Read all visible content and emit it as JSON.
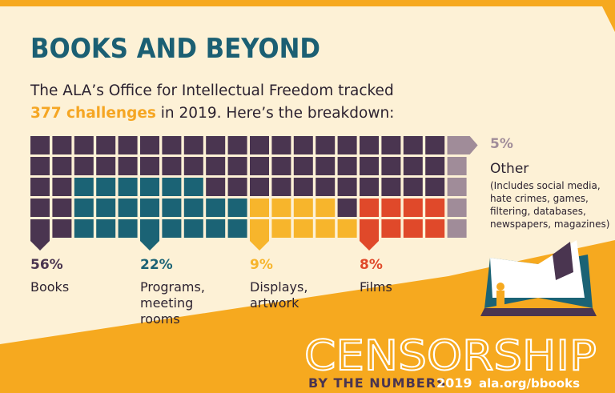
{
  "header": {
    "title": "BOOKS AND BEYOND",
    "intro_line1": "The ALA’s Office for Intellectual Freedom tracked",
    "intro_highlight": "377 challenges",
    "intro_line2": "in 2019. Here’s the breakdown:"
  },
  "chart_data": {
    "type": "waffle",
    "categories": [
      "Books",
      "Programs, meeting rooms",
      "Displays, artwork",
      "Films",
      "Other"
    ],
    "values": [
      56,
      22,
      9,
      8,
      5
    ],
    "value_labels": [
      "56%",
      "22%",
      "9%",
      "8%",
      "5%"
    ],
    "colors": [
      "#4a3550",
      "#1b6375",
      "#f7b52c",
      "#e0492a",
      "#a08c99"
    ],
    "annotation": "(Includes social media, hate crimes, games, filtering, databases, newspapers, magazines)"
  },
  "footer": {
    "title": "CENSORSHIP",
    "subtitle": "BY THE NUMBERS",
    "year": "2019",
    "url": "ala.org/bbooks"
  }
}
